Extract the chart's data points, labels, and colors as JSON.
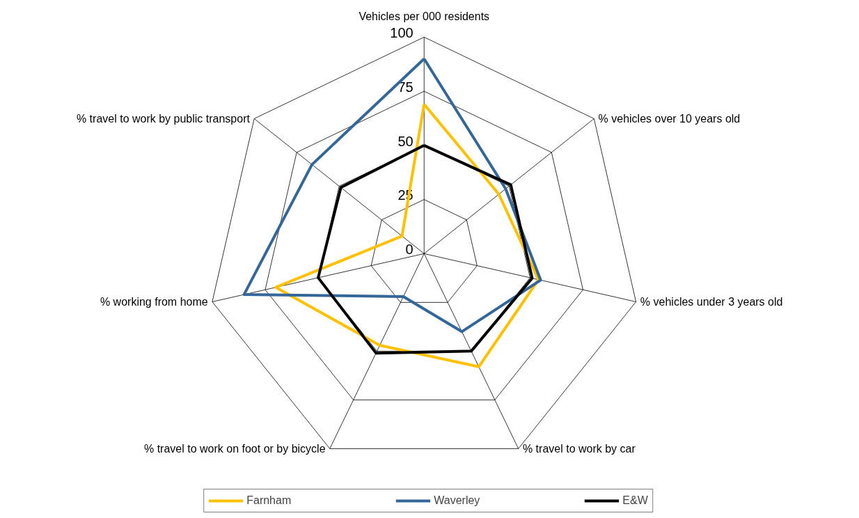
{
  "chart_data": {
    "type": "radar",
    "categories": [
      "Vehicles per 000 residents",
      "% vehicles over 10 years old",
      "% vehicles under 3 years old",
      "% travel to work by car",
      "% travel to work on foot or by bicycle",
      "% working from home",
      "% travel to work by public transport"
    ],
    "series": [
      {
        "name": "Farnham",
        "color": "#ffc000",
        "values": [
          69,
          44,
          54,
          58,
          47,
          70,
          13
        ]
      },
      {
        "name": "Waverley",
        "color": "#336699",
        "values": [
          90,
          48,
          55,
          40,
          22,
          85,
          66
        ]
      },
      {
        "name": "E&W",
        "color": "#000000",
        "values": [
          50,
          51,
          51,
          50,
          51,
          50,
          49
        ]
      }
    ],
    "ylim": [
      0,
      100
    ],
    "yticks": [
      0,
      25,
      50,
      75,
      100
    ],
    "grid": true,
    "legend": "bottom"
  }
}
